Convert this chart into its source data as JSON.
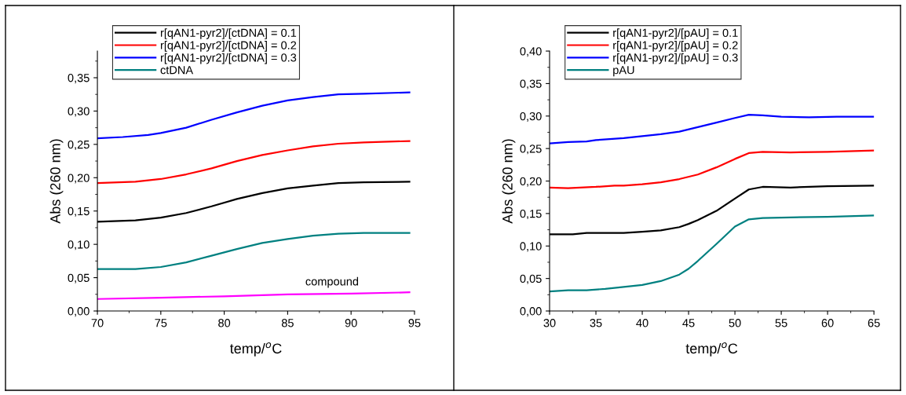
{
  "chart_data": [
    {
      "type": "line",
      "xlabel": "temp/$^{o}$C",
      "ylabel": "Abs (260 nm)",
      "xlim": [
        70,
        95
      ],
      "xticks": [
        70,
        75,
        80,
        85,
        90,
        95
      ],
      "ylim": [
        0,
        0.39
      ],
      "yticks": [
        {
          "value": 0,
          "label": "0,00"
        },
        {
          "value": 0.05,
          "label": "0,05"
        },
        {
          "value": 0.1,
          "label": "0,10"
        },
        {
          "value": 0.15,
          "label": "0,15"
        },
        {
          "value": 0.2,
          "label": "0,20"
        },
        {
          "value": 0.25,
          "label": "0,25"
        },
        {
          "value": 0.3,
          "label": "0,30"
        },
        {
          "value": 0.35,
          "label": "0,35"
        }
      ],
      "legend": "top left",
      "grid": false,
      "annotations": [
        "compound"
      ],
      "series": [
        {
          "name": "r[qAN1-pyr2]/[ctDNA] = 0.1",
          "color": "#000000",
          "x": [
            70,
            73,
            75,
            77,
            79,
            81,
            83,
            85,
            87,
            89,
            91,
            94.6
          ],
          "values": [
            0.134,
            0.136,
            0.14,
            0.147,
            0.157,
            0.168,
            0.177,
            0.184,
            0.188,
            0.192,
            0.193,
            0.194
          ]
        },
        {
          "name": "r[qAN1-pyr2]/[ctDNA] = 0.2",
          "color": "#ff0000",
          "x": [
            70,
            73,
            75,
            77,
            79,
            81,
            83,
            85,
            87,
            89,
            91,
            94.6
          ],
          "values": [
            0.192,
            0.194,
            0.198,
            0.205,
            0.214,
            0.225,
            0.234,
            0.241,
            0.247,
            0.251,
            0.253,
            0.255
          ]
        },
        {
          "name": "r[qAN1-pyr2]/[ctDNA] = 0.3",
          "color": "#0000ff",
          "x": [
            70,
            72,
            74,
            75,
            77,
            79,
            81,
            83,
            85,
            87,
            89,
            91,
            94.6
          ],
          "values": [
            0.259,
            0.261,
            0.264,
            0.267,
            0.275,
            0.287,
            0.298,
            0.308,
            0.316,
            0.321,
            0.325,
            0.326,
            0.328
          ]
        },
        {
          "name": "ctDNA",
          "color": "#008080",
          "x": [
            70,
            73,
            75,
            77,
            79,
            81,
            83,
            85,
            87,
            89,
            91,
            94.6
          ],
          "values": [
            0.063,
            0.063,
            0.066,
            0.073,
            0.083,
            0.093,
            0.102,
            0.108,
            0.113,
            0.116,
            0.117,
            0.117
          ]
        },
        {
          "color": "#ff00ff",
          "x": [
            70,
            75,
            80,
            85,
            90,
            94.6
          ],
          "values": [
            0.018,
            0.02,
            0.022,
            0.025,
            0.026,
            0.028
          ]
        }
      ]
    },
    {
      "type": "line",
      "xlabel": "temp/$^{o}$C",
      "ylabel": "Abs (260 nm)",
      "xlim": [
        30,
        65
      ],
      "xticks": [
        30,
        35,
        40,
        45,
        50,
        55,
        60,
        65
      ],
      "ylim": [
        0,
        0.4
      ],
      "yticks": [
        {
          "value": 0,
          "label": "0,00"
        },
        {
          "value": 0.05,
          "label": "0,05"
        },
        {
          "value": 0.1,
          "label": "0,10"
        },
        {
          "value": 0.15,
          "label": "0,15"
        },
        {
          "value": 0.2,
          "label": "0,20"
        },
        {
          "value": 0.25,
          "label": "0,25"
        },
        {
          "value": 0.3,
          "label": "0,30"
        },
        {
          "value": 0.35,
          "label": "0,35"
        },
        {
          "value": 0.4,
          "label": "0,40"
        }
      ],
      "legend": "top left",
      "grid": false,
      "series": [
        {
          "name": "r[qAN1-pyr2]/[pAU] = 0.1",
          "color": "#000000",
          "x": [
            30,
            32.5,
            34,
            38,
            40,
            42,
            44,
            45,
            46,
            48,
            50,
            51.5,
            53,
            56,
            60,
            65
          ],
          "values": [
            0.118,
            0.118,
            0.12,
            0.12,
            0.122,
            0.124,
            0.129,
            0.134,
            0.14,
            0.154,
            0.173,
            0.187,
            0.191,
            0.19,
            0.192,
            0.193
          ]
        },
        {
          "name": "r[qAN1-pyr2]/[pAU] = 0.2",
          "color": "#ff0000",
          "x": [
            30,
            32,
            35,
            37,
            38,
            40,
            42,
            44,
            46,
            48,
            50,
            51.5,
            53,
            56,
            60,
            65
          ],
          "values": [
            0.19,
            0.189,
            0.191,
            0.193,
            0.193,
            0.195,
            0.198,
            0.203,
            0.21,
            0.221,
            0.234,
            0.243,
            0.245,
            0.244,
            0.245,
            0.247
          ]
        },
        {
          "name": "r[qAN1-pyr2]/[pAU] = 0.3",
          "color": "#0000ff",
          "x": [
            30,
            32,
            34,
            35,
            38,
            40,
            42,
            44,
            46,
            48,
            50,
            51.5,
            53,
            55,
            58,
            61,
            65
          ],
          "values": [
            0.258,
            0.26,
            0.261,
            0.263,
            0.266,
            0.269,
            0.272,
            0.276,
            0.283,
            0.29,
            0.297,
            0.302,
            0.301,
            0.299,
            0.298,
            0.299,
            0.299
          ]
        },
        {
          "name": "pAU",
          "color": "#008080",
          "x": [
            30,
            32,
            34,
            36,
            38,
            40,
            42,
            44,
            45,
            46,
            48,
            50,
            51.5,
            53,
            56,
            60,
            65
          ],
          "values": [
            0.03,
            0.032,
            0.032,
            0.034,
            0.037,
            0.04,
            0.046,
            0.056,
            0.065,
            0.077,
            0.103,
            0.13,
            0.141,
            0.143,
            0.144,
            0.145,
            0.147
          ]
        }
      ]
    }
  ]
}
